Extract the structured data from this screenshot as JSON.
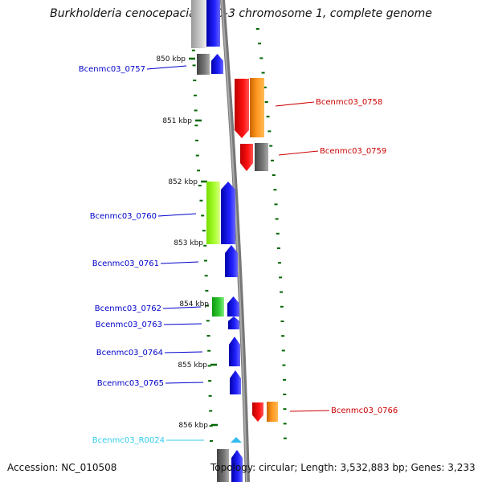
{
  "title": "Burkholderia cenocepacia MC0-3 chromosome 1, complete genome",
  "accession": "Accession: NC_010508",
  "topology": "Topology: circular; Length: 3,532,883 bp; Genes: 3,233",
  "ticks": [
    "850 kbp",
    "851 kbp",
    "852 kbp",
    "853 kbp",
    "854 kbp",
    "855 kbp",
    "856 kbp"
  ],
  "genes": [
    {
      "name": "Bcenmc03_0757",
      "strand": "forward",
      "color": "#0000cc"
    },
    {
      "name": "Bcenmc03_0758",
      "strand": "reverse",
      "color": "#cc0000"
    },
    {
      "name": "Bcenmc03_0759",
      "strand": "reverse",
      "color": "#cc0000"
    },
    {
      "name": "Bcenmc03_0760",
      "strand": "forward",
      "color": "#0000cc"
    },
    {
      "name": "Bcenmc03_0761",
      "strand": "forward",
      "color": "#0000cc"
    },
    {
      "name": "Bcenmc03_0762",
      "strand": "forward",
      "color": "#0000cc"
    },
    {
      "name": "Bcenmc03_0763",
      "strand": "forward",
      "color": "#0000cc"
    },
    {
      "name": "Bcenmc03_0764",
      "strand": "forward",
      "color": "#0000cc"
    },
    {
      "name": "Bcenmc03_0765",
      "strand": "forward",
      "color": "#0000cc"
    },
    {
      "name": "Bcenmc03_0766",
      "strand": "reverse",
      "color": "#cc0000"
    },
    {
      "name": "Bcenmc03_R0024",
      "strand": "forward",
      "color": "#33ccee"
    }
  ],
  "colors": {
    "forward_cds": "#0000ee",
    "reverse_cds": "#ee0000",
    "cog_orange": "#ff8800",
    "cog_gray": "#666666",
    "cog_lime": "#99ff22",
    "cog_green": "#22cc22",
    "backbone": "#888888",
    "tick": "#006600",
    "rna": "#33bbee"
  }
}
